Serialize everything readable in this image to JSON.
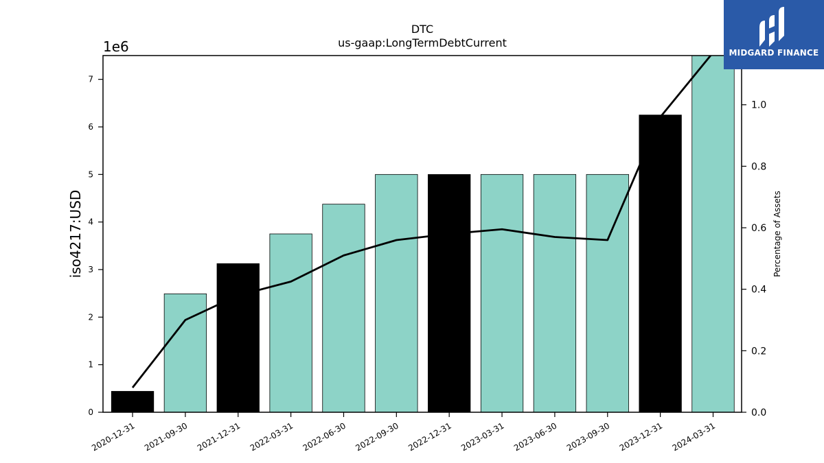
{
  "chart_data": {
    "type": "bar",
    "title": "DTC",
    "subtitle": "us-gaap:LongTermDebtCurrent",
    "ylabel": "iso4217:USD",
    "y_exponent_label": "1e6",
    "y2label": "Percentage of Assets",
    "ylim": [
      0,
      7500000
    ],
    "y2lim": [
      0,
      1.16
    ],
    "yticks": [
      0,
      1000000,
      2000000,
      3000000,
      4000000,
      5000000,
      6000000,
      7000000
    ],
    "ytick_labels": [
      "0",
      "1",
      "2",
      "3",
      "4",
      "5",
      "6",
      "7"
    ],
    "y2ticks": [
      0.0,
      0.2,
      0.4,
      0.6,
      0.8,
      1.0
    ],
    "y2tick_labels": [
      "0.0",
      "0.2",
      "0.4",
      "0.6",
      "0.8",
      "1.0"
    ],
    "categories": [
      "2020-12-31",
      "2021-09-30",
      "2021-12-31",
      "2022-03-31",
      "2022-06-30",
      "2022-09-30",
      "2022-12-31",
      "2023-03-31",
      "2023-06-30",
      "2023-09-30",
      "2023-12-31",
      "2024-03-31"
    ],
    "values": [
      440000,
      2490000,
      3125000,
      3750000,
      4375000,
      5000000,
      5000000,
      5000000,
      5000000,
      5000000,
      6250000,
      7500000
    ],
    "bar_colors": [
      "#000000",
      "#8dd3c7",
      "#000000",
      "#8dd3c7",
      "#8dd3c7",
      "#8dd3c7",
      "#000000",
      "#8dd3c7",
      "#8dd3c7",
      "#8dd3c7",
      "#000000",
      "#8dd3c7"
    ],
    "line_values": [
      0.08,
      0.3,
      0.38,
      0.425,
      0.51,
      0.56,
      0.58,
      0.595,
      0.57,
      0.56,
      0.96,
      1.17
    ],
    "line_color": "#000000",
    "grid": false
  },
  "logo": {
    "text": "MIDGARD FINANCE",
    "color": "#2a5aa8"
  }
}
